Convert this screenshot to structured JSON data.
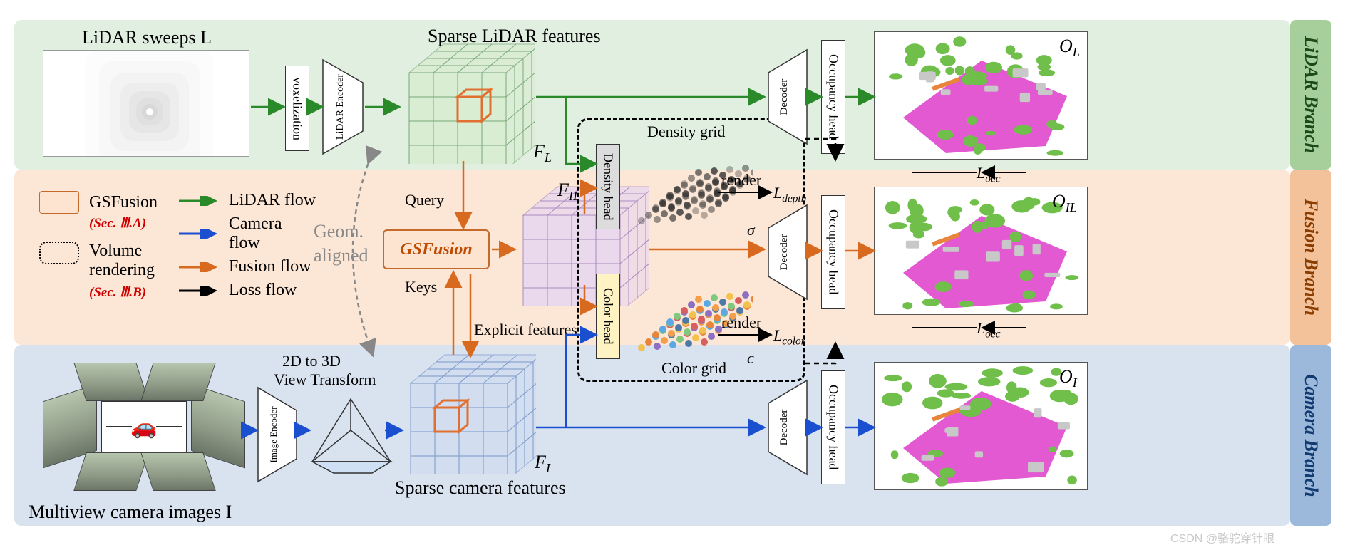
{
  "lidar": {
    "input_label": "LiDAR sweeps L",
    "feat_label": "Sparse LiDAR features",
    "feat_sym": "F",
    "feat_sub": "L",
    "branch_label": "LiDAR Branch",
    "out_sym": "O",
    "out_sub": "L"
  },
  "fusion": {
    "branch_label": "Fusion Branch",
    "gsfusion": "GSFusion",
    "feat_sym": "F",
    "feat_sub": "IL",
    "explicit_label": "Explicit features",
    "density_label": "Density grid",
    "sigma": "σ",
    "color_label": "Color grid",
    "c_sym": "c",
    "render": "render",
    "l_depth": "L",
    "l_depth_sub": "depth",
    "l_color": "L",
    "l_color_sub": "color",
    "out_sym": "O",
    "out_sub": "IL",
    "query": "Query",
    "keys": "Keys",
    "geom": "Geom.",
    "aligned": "aligned"
  },
  "camera": {
    "input_label": "Multiview camera images I",
    "vt_label1": "2D to 3D",
    "vt_label2": "View Transform",
    "feat_label": "Sparse camera features",
    "feat_sym": "F",
    "feat_sub": "I",
    "branch_label": "Camera Branch",
    "out_sym": "O",
    "out_sub": "I"
  },
  "modules": {
    "voxel": "voxelization",
    "lidar_enc": "LiDAR\nEncoder",
    "img_enc": "Image\nEncoder",
    "density_head": "Density head",
    "color_head": "Color head",
    "decoder": "Decoder",
    "occ_head": "Occupancy head"
  },
  "legend": {
    "gsfusion": "GSFusion",
    "sec_a": "(Sec. Ⅲ.A)",
    "vol": "Volume",
    "vol2": "rendering",
    "sec_b": "(Sec. Ⅲ.B)",
    "lidar_flow": "LiDAR flow",
    "camera_flow": "Camera flow",
    "fusion_flow": "Fusion flow",
    "loss_flow": "Loss flow"
  },
  "loss": {
    "locc": "L",
    "locc_sub": "occ"
  },
  "colors": {
    "lidar_bg": "#e0efe0",
    "fusion_bg": "#fce6d6",
    "camera_bg": "#d9e3f0",
    "lidar_flow": "#2a8a2a",
    "camera_flow": "#1a4fd0",
    "fusion_flow": "#d86a20",
    "loss_flow": "#000000",
    "cube_lidar_fill": "#d8ecd0",
    "cube_lidar_stroke": "#7aa87a",
    "cube_fusion_fill": "#e8d6f0",
    "cube_fusion_stroke": "#a88cc0",
    "cube_cam_fill": "#d0ddf0",
    "cube_cam_stroke": "#7a98c8",
    "highlight": "#e07030",
    "map_magenta": "#e050d0",
    "map_green": "#6fbf4a",
    "map_gray": "#c8c8c8"
  },
  "grids": {
    "density_dots": [
      "#333333"
    ],
    "color_dots": [
      "#f2c14e",
      "#e8853a",
      "#5aa9e6",
      "#7fc97f",
      "#d95f5f",
      "#8e6fc1",
      "#f29e4c",
      "#4e79a7"
    ]
  },
  "watermark": "CSDN @骆驼穿针眼"
}
